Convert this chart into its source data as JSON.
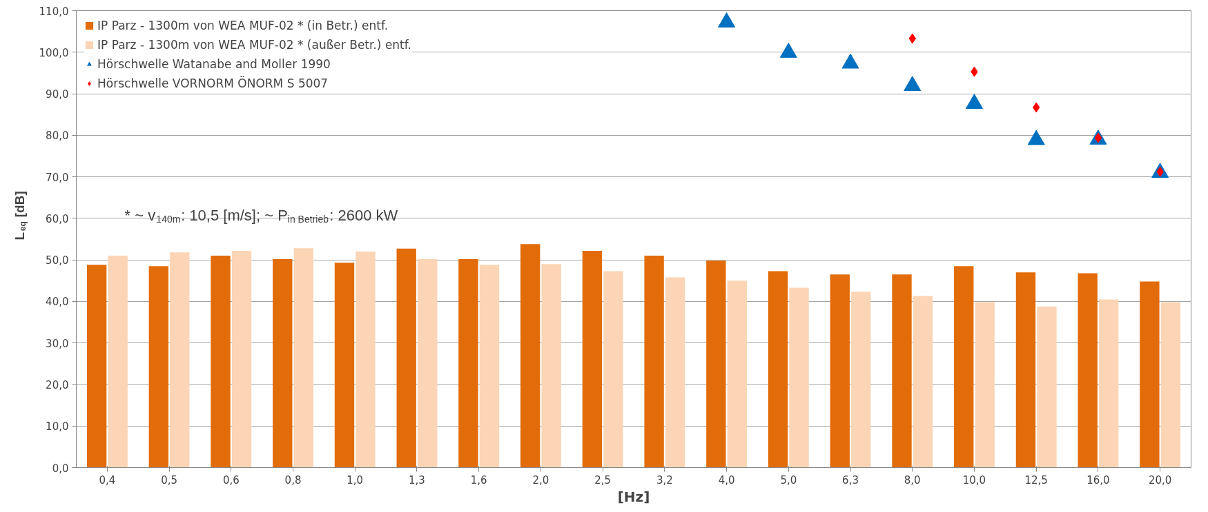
{
  "chart_data": {
    "type": "bar",
    "ylabel": "L$_{eq}$ [dB]",
    "xlabel": "[Hz]",
    "categories": [
      "0,4",
      "0,5",
      "0,6",
      "0,8",
      "1,0",
      "1,3",
      "1,6",
      "2,0",
      "2,5",
      "3,2",
      "4,0",
      "5,0",
      "6,3",
      "8,0",
      "10,0",
      "12,5",
      "16,0",
      "20,0"
    ],
    "series": [
      {
        "name": "IP Parz - 1300m von WEA MUF-02 * (in Betr.) entf.",
        "color": "#e36c0a",
        "values": [
          48.8,
          48.5,
          51.0,
          50.2,
          49.3,
          52.7,
          50.2,
          53.8,
          52.2,
          51.0,
          49.8,
          47.3,
          46.5,
          46.5,
          48.5,
          47.0,
          46.8,
          44.8
        ]
      },
      {
        "name": "IP Parz - 1300m von WEA MUF-02 * (außer Betr.) entf.",
        "color": "#fbd5b5",
        "values": [
          51.0,
          51.8,
          52.2,
          52.8,
          52.0,
          50.2,
          48.8,
          49.0,
          47.3,
          45.8,
          45.0,
          43.3,
          42.3,
          41.3,
          39.8,
          38.8,
          40.5,
          39.8
        ]
      },
      {
        "name": "Hörschwelle Watanabe and Moller 1990",
        "type": "scatter",
        "marker": "triangle",
        "color": "#0070c0",
        "x": [
          "4,0",
          "5,0",
          "6,3",
          "8,0",
          "10,0",
          "12,5",
          "16,0",
          "20,0"
        ],
        "values": [
          107.2,
          99.9,
          97.3,
          91.9,
          87.6,
          78.9,
          79.0,
          71.0
        ]
      },
      {
        "name": "Hörschwelle VORNORM ÖNORM S 5007",
        "type": "scatter",
        "marker": "diamond",
        "color": "#ff0000",
        "x": [
          "8,0",
          "10,0",
          "12,5",
          "16,0",
          "20,0"
        ],
        "values": [
          103.3,
          95.3,
          86.7,
          79.4,
          71.2
        ]
      }
    ],
    "ylim": [
      0,
      110
    ],
    "yticks": [
      {
        "value": 0,
        "label": "0,0"
      },
      {
        "value": 10,
        "label": "10,0"
      },
      {
        "value": 20,
        "label": "20,0"
      },
      {
        "value": 30,
        "label": "30,0"
      },
      {
        "value": 40,
        "label": "40,0"
      },
      {
        "value": 50,
        "label": "50,0"
      },
      {
        "value": 60,
        "label": "60,0"
      },
      {
        "value": 70,
        "label": "70,0"
      },
      {
        "value": 80,
        "label": "80,0"
      },
      {
        "value": 90,
        "label": "90,0"
      },
      {
        "value": 100,
        "label": "100,0"
      },
      {
        "value": 110,
        "label": "110,0"
      }
    ],
    "grid": "y",
    "legend": "top left",
    "annotations": [
      "* ~ v$_{140m}$: 10,5 [m/s]; ~ P$_{in Betrieb}$: 2600 kW"
    ]
  }
}
